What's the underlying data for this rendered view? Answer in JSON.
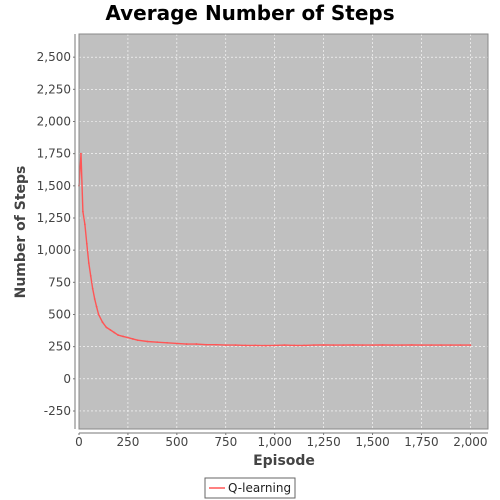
{
  "chart_data": {
    "type": "line",
    "title": "Average Number of Steps",
    "xlabel": "Episode",
    "ylabel": "Number of Steps",
    "xlim": [
      0,
      2090
    ],
    "ylim": [
      -390,
      2680
    ],
    "x_ticks": [
      0,
      250,
      500,
      750,
      1000,
      1250,
      1500,
      1750,
      2000
    ],
    "x_tick_labels": [
      "0",
      "250",
      "500",
      "750",
      "1,000",
      "1,250",
      "1,500",
      "1,750",
      "2,000"
    ],
    "y_ticks": [
      -250,
      0,
      250,
      500,
      750,
      1000,
      1250,
      1500,
      1750,
      2000,
      2250,
      2500
    ],
    "y_tick_labels": [
      "-250",
      "0",
      "250",
      "500",
      "750",
      "1,000",
      "1,250",
      "1,500",
      "1,750",
      "2,000",
      "2,250",
      "2,500"
    ],
    "grid": true,
    "legend_position": "bottom-center",
    "background_color": "#c0c0c0",
    "series": [
      {
        "name": "Q-learning",
        "color": "#ff5555",
        "x": [
          0,
          10,
          20,
          30,
          40,
          50,
          60,
          70,
          80,
          90,
          100,
          120,
          140,
          160,
          180,
          200,
          225,
          250,
          275,
          300,
          350,
          400,
          450,
          500,
          550,
          600,
          650,
          700,
          750,
          800,
          850,
          900,
          950,
          1000,
          1050,
          1100,
          1150,
          1200,
          1250,
          1300,
          1350,
          1400,
          1450,
          1500,
          1550,
          1600,
          1650,
          1700,
          1750,
          1800,
          1850,
          1900,
          1950,
          2000
        ],
        "values": [
          1500,
          1750,
          1300,
          1200,
          1050,
          900,
          800,
          700,
          620,
          560,
          500,
          440,
          400,
          380,
          360,
          340,
          330,
          320,
          310,
          300,
          290,
          285,
          280,
          275,
          270,
          270,
          265,
          265,
          262,
          262,
          260,
          260,
          258,
          260,
          262,
          260,
          260,
          262,
          263,
          262,
          262,
          263,
          262,
          262,
          263,
          262,
          262,
          263,
          262,
          262,
          262,
          262,
          262,
          262
        ]
      }
    ]
  }
}
